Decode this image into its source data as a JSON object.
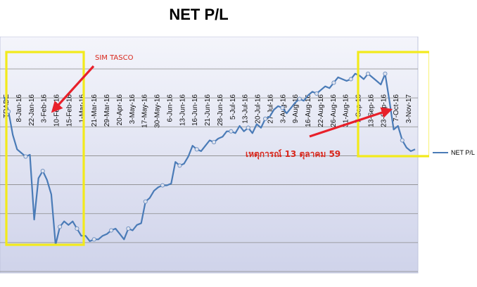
{
  "chart_data": {
    "type": "line",
    "title": "NET P/L",
    "x_tick_labels": [
      "TRADE",
      "8-Jan-16",
      "22-Jan-16",
      "3-Feb-16",
      "10-Feb-16",
      "15-Feb-16",
      "1-Mar-16",
      "21-Mar-16",
      "29-Mar-16",
      "20-Apr-16",
      "3-May-16",
      "17-May-16",
      "30-May-16",
      "6-Jun-16",
      "13-Jun-16",
      "16-Jun-16",
      "21-Jun-16",
      "28-Jun-16",
      "5-Jul-16",
      "13-Jul-16",
      "20-Jul-16",
      "27-Jul-16",
      "3-Aug-16",
      "9-Aug-16",
      "16-Aug-16",
      "22-Aug-16",
      "26-Aug-16",
      "31-Aug-16",
      "7-Sep-16",
      "13-Sep-16",
      "23-Sep-16",
      "7-Oct-16",
      "3-Nov-17"
    ],
    "y_range": [
      0,
      100
    ],
    "grid": true,
    "legend_position": "right",
    "series": [
      {
        "name": "NET P/L",
        "color": "#4a7bb7",
        "values": [
          82,
          74,
          61,
          53,
          51,
          49,
          50,
          14,
          37,
          41,
          36,
          28,
          0,
          10,
          13,
          11,
          13,
          9,
          5,
          5,
          2,
          3,
          3,
          5,
          6,
          8,
          9,
          6,
          3,
          9,
          8,
          11,
          12,
          24,
          26,
          30,
          32,
          33,
          33,
          34,
          46,
          44,
          45,
          49,
          55,
          53,
          52,
          55,
          58,
          57,
          59,
          60,
          63,
          63,
          62,
          66,
          63,
          65,
          62,
          67,
          65,
          70,
          71,
          75,
          77,
          76,
          73,
          76,
          79,
          81,
          80,
          83,
          85,
          84,
          86,
          88,
          87,
          90,
          93,
          92,
          91,
          92,
          95,
          94,
          92,
          95,
          93,
          91,
          89,
          95,
          80,
          64,
          66,
          58,
          54,
          52,
          53
        ]
      }
    ],
    "annotations": [
      {
        "text": "SIM TASCO"
      },
      {
        "text": "เหตุการณ์ 13 ตุลาคม 59"
      }
    ]
  }
}
